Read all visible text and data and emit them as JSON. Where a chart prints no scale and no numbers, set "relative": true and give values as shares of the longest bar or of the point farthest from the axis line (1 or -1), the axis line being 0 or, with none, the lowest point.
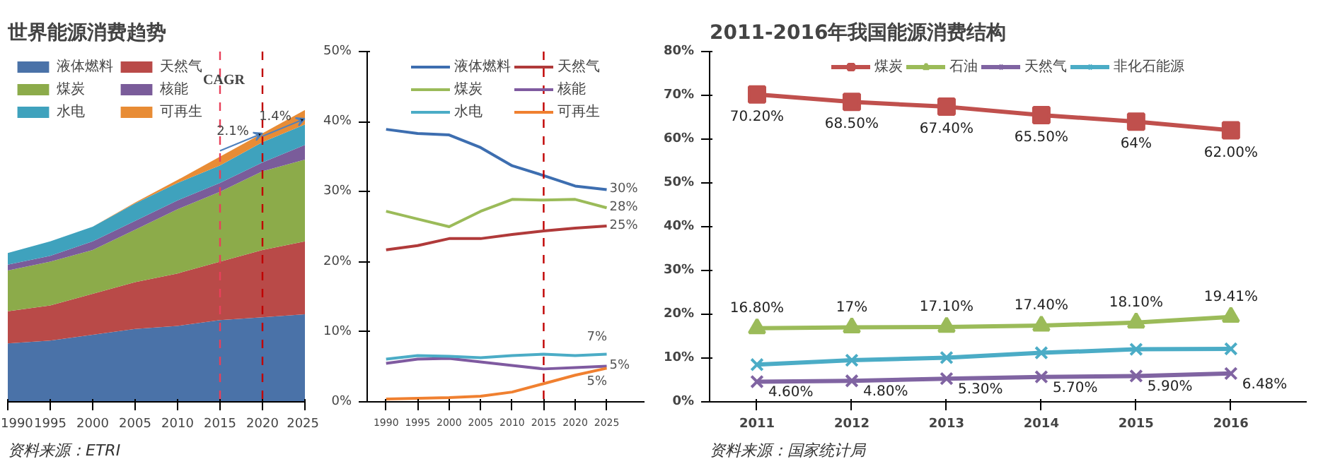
{
  "chart_data": [
    {
      "type": "area",
      "title": "世界能源消费趋势",
      "stacked": true,
      "relative": true,
      "x": [
        1990,
        1995,
        2000,
        2005,
        2010,
        2015,
        2020,
        2025
      ],
      "xlim": [
        1990,
        2025
      ],
      "xticks": [
        1990,
        1995,
        2000,
        2005,
        2010,
        2015,
        2020,
        2025
      ],
      "legend": "top left",
      "grid": false,
      "series": [
        {
          "name": "液体燃料",
          "color": "#4a72a8",
          "values": [
            0.2,
            0.21,
            0.23,
            0.25,
            0.26,
            0.28,
            0.29,
            0.3
          ]
        },
        {
          "name": "天然气",
          "color": "#b94a48",
          "values": [
            0.11,
            0.12,
            0.14,
            0.16,
            0.18,
            0.2,
            0.23,
            0.25
          ]
        },
        {
          "name": "煤炭",
          "color": "#8cab4a",
          "values": [
            0.14,
            0.15,
            0.15,
            0.18,
            0.22,
            0.24,
            0.27,
            0.28
          ]
        },
        {
          "name": "核能",
          "color": "#7a5c9a",
          "values": [
            0.02,
            0.02,
            0.03,
            0.03,
            0.03,
            0.03,
            0.03,
            0.05
          ]
        },
        {
          "name": "水电",
          "color": "#3fa2bd",
          "values": [
            0.04,
            0.05,
            0.05,
            0.06,
            0.06,
            0.06,
            0.07,
            0.07
          ]
        },
        {
          "name": "可再生",
          "color": "#e88c35",
          "values": [
            0,
            0,
            0,
            0.003,
            0.01,
            0.03,
            0.03,
            0.05
          ]
        }
      ],
      "ref_lines": [
        {
          "axis": "x",
          "value": 2015,
          "color": "#e8405a",
          "line_style": "dashed"
        },
        {
          "axis": "x",
          "value": 2020,
          "color": "#c00000",
          "line_style": "dashed"
        }
      ],
      "annotations": [
        "CAGR",
        "2.1%",
        "1.4%",
        "资料来源：ETRI"
      ]
    },
    {
      "type": "line",
      "x": [
        1990,
        1995,
        2000,
        2005,
        2010,
        2015,
        2020,
        2025
      ],
      "xlim": [
        1987,
        2031
      ],
      "xticks": [
        1990,
        1995,
        2000,
        2005,
        2010,
        2015,
        2020,
        2025
      ],
      "ylim": [
        0,
        50
      ],
      "yticks": [
        {
          "value": 0,
          "label": "0%"
        },
        {
          "value": 10,
          "label": "10%"
        },
        {
          "value": 20,
          "label": "20%"
        },
        {
          "value": 30,
          "label": "30%"
        },
        {
          "value": 40,
          "label": "40%"
        },
        {
          "value": 50,
          "label": "50%"
        }
      ],
      "legend": "top",
      "grid": false,
      "series": [
        {
          "name": "液体燃料",
          "color": "#3d6eb0",
          "values": [
            38.9,
            38.3,
            38.1,
            36.3,
            33.7,
            32.3,
            30.8,
            30.3
          ],
          "value_labels": [
            null,
            null,
            null,
            null,
            null,
            null,
            null,
            "30%"
          ]
        },
        {
          "name": "天然气",
          "color": "#b03a3a",
          "values": [
            21.7,
            22.3,
            23.3,
            23.3,
            23.9,
            24.4,
            24.8,
            25.1
          ],
          "value_labels": [
            null,
            null,
            null,
            null,
            null,
            null,
            null,
            "25%"
          ]
        },
        {
          "name": "煤炭",
          "color": "#9bbb59",
          "values": [
            27.2,
            26.1,
            25.0,
            27.2,
            28.9,
            28.8,
            28.9,
            27.7
          ],
          "value_labels": [
            null,
            null,
            null,
            null,
            null,
            null,
            null,
            "28%"
          ]
        },
        {
          "name": "核能",
          "color": "#7f5aa0",
          "values": [
            5.5,
            6.1,
            6.2,
            5.7,
            5.2,
            4.7,
            4.9,
            5.1
          ],
          "value_labels": [
            null,
            null,
            null,
            null,
            null,
            null,
            null,
            "5%"
          ]
        },
        {
          "name": "水电",
          "color": "#4bacc6",
          "values": [
            6.1,
            6.6,
            6.5,
            6.3,
            6.6,
            6.8,
            6.6,
            6.8
          ],
          "value_labels": [
            null,
            null,
            null,
            null,
            null,
            null,
            null,
            "7%"
          ]
        },
        {
          "name": "可再生",
          "color": "#f08030",
          "values": [
            0.4,
            0.5,
            0.6,
            0.8,
            1.4,
            2.6,
            3.8,
            4.8
          ],
          "value_labels": [
            null,
            null,
            null,
            null,
            null,
            null,
            null,
            "5%"
          ]
        }
      ],
      "ref_lines": [
        {
          "axis": "x",
          "value": 2015,
          "color": "#c00000",
          "line_style": "dashed"
        }
      ]
    },
    {
      "type": "line",
      "title": "2011-2016年我国能源消费结构",
      "categories": [
        "2011",
        "2012",
        "2013",
        "2014",
        "2015",
        "2016"
      ],
      "ylim": [
        0,
        80
      ],
      "yticks": [
        {
          "value": 0,
          "label": "0%"
        },
        {
          "value": 10,
          "label": "10%"
        },
        {
          "value": 20,
          "label": "20%"
        },
        {
          "value": 30,
          "label": "30%"
        },
        {
          "value": 40,
          "label": "40%"
        },
        {
          "value": 50,
          "label": "50%"
        },
        {
          "value": 60,
          "label": "60%"
        },
        {
          "value": 70,
          "label": "70%"
        },
        {
          "value": 80,
          "label": "80%"
        }
      ],
      "legend": "top",
      "grid": false,
      "series": [
        {
          "name": "煤炭",
          "color": "#c0504d",
          "marker": "square",
          "values": [
            70.2,
            68.5,
            67.4,
            65.5,
            64,
            62.0
          ],
          "value_labels": [
            "70.20%",
            "68.50%",
            "67.40%",
            "65.50%",
            "64%",
            "62.00%"
          ]
        },
        {
          "name": "石油",
          "color": "#9bbb59",
          "marker": "triangle",
          "values": [
            16.8,
            17,
            17.1,
            17.4,
            18.1,
            19.41
          ],
          "value_labels": [
            "16.80%",
            "17%",
            "17.10%",
            "17.40%",
            "18.10%",
            "19.41%"
          ]
        },
        {
          "name": "天然气",
          "color": "#8064a2",
          "marker": "cross",
          "values": [
            4.6,
            4.8,
            5.3,
            5.7,
            5.9,
            6.48
          ],
          "value_labels": [
            "4.60%",
            "4.80%",
            "5.30%",
            "5.70%",
            "5.90%",
            "6.48%"
          ]
        },
        {
          "name": "非化石能源",
          "color": "#4bacc6",
          "marker": "cross",
          "values": [
            8.5,
            9.5,
            10.1,
            11.2,
            12.0,
            12.1
          ]
        }
      ],
      "annotations": [
        "资料来源：国家统计局"
      ]
    }
  ]
}
